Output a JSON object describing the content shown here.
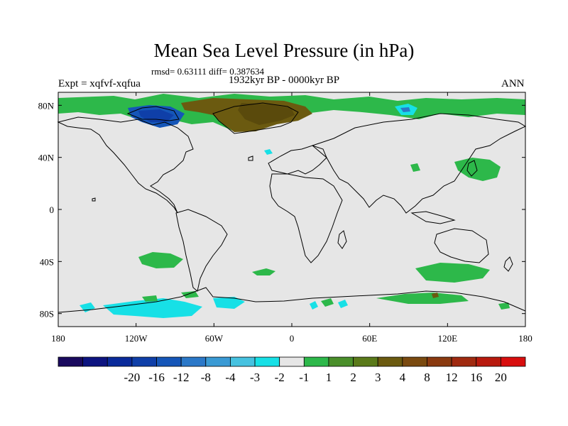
{
  "map": {
    "title": "Mean Sea Level Pressure (in hPa)",
    "stats": "rmsd= 0.63111 diff= 0.387634",
    "experiment": "Expt = xqfvf-xqfua",
    "period": "1932kyr BP - 0000kyr BP",
    "season": "ANN",
    "lat_ticks": [
      "80N",
      "40N",
      "0",
      "40S",
      "80S"
    ],
    "lat_values": [
      80,
      40,
      0,
      -40,
      -80
    ],
    "lon_ticks": [
      "180",
      "120W",
      "60W",
      "0",
      "60E",
      "120E",
      "180"
    ],
    "lon_values": [
      -180,
      -120,
      -60,
      0,
      60,
      120,
      180
    ],
    "colorbar": {
      "labels": [
        "-20",
        "-16",
        "-12",
        "-8",
        "-4",
        "-3",
        "-2",
        "-1",
        "1",
        "2",
        "3",
        "4",
        "8",
        "12",
        "16",
        "20"
      ],
      "colors": [
        "#1a0a5e",
        "#0d1480",
        "#0a2a9a",
        "#0f3fa8",
        "#1556b8",
        "#2b78c8",
        "#3a9ad4",
        "#46c2e0",
        "#17e0e6",
        "#e6e6e6",
        "#2db84a",
        "#4a8f2a",
        "#5a7a1a",
        "#6b5a10",
        "#7a4a10",
        "#8a3a10",
        "#a02a10",
        "#b81a0e",
        "#d80e0e"
      ]
    },
    "colors": {
      "land_neutral": "#e6e6e6",
      "coast": "#000000"
    }
  }
}
